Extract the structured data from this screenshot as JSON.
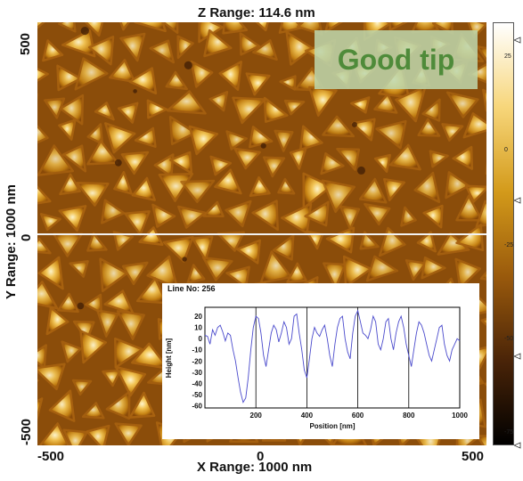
{
  "title": "Z Range:  114.6 nm",
  "x_axis": {
    "label": "X Range: 1000 nm",
    "ticks": [
      "-500",
      "0",
      "500"
    ]
  },
  "y_axis": {
    "label": "Y Range: 1000 nm",
    "ticks": [
      "500",
      "0",
      "-500"
    ]
  },
  "annotation": "Good tip",
  "profile": {
    "line_label": "Line No: 256",
    "xlabel": "Position [nm]",
    "ylabel": "Height [nm]",
    "x_ticks": [
      "200",
      "400",
      "600",
      "800",
      "1000"
    ],
    "y_ticks": [
      "20",
      "10",
      "0",
      "-10",
      "-20",
      "-30",
      "-40",
      "-50",
      "-60"
    ]
  },
  "colorbar": {
    "labels": [
      "25",
      "0",
      "-25",
      "-50",
      "-75"
    ],
    "colors": [
      "#ffffff",
      "#f7d67a",
      "#d39a1a",
      "#9a5a0c",
      "#4a2408",
      "#000000"
    ]
  },
  "chart_data": {
    "type": "line",
    "title": "Line No: 256",
    "xlabel": "Position [nm]",
    "ylabel": "Height [nm]",
    "xlim": [
      0,
      1000
    ],
    "ylim": [
      -62,
      28
    ],
    "x": [
      0,
      10,
      20,
      30,
      40,
      50,
      60,
      70,
      80,
      90,
      100,
      110,
      120,
      130,
      140,
      150,
      160,
      170,
      180,
      190,
      200,
      210,
      220,
      230,
      240,
      250,
      260,
      270,
      280,
      290,
      300,
      310,
      320,
      330,
      340,
      350,
      360,
      370,
      380,
      390,
      400,
      410,
      420,
      430,
      440,
      450,
      460,
      470,
      480,
      490,
      500,
      510,
      520,
      530,
      540,
      550,
      560,
      570,
      580,
      590,
      600,
      610,
      620,
      630,
      640,
      650,
      660,
      670,
      680,
      690,
      700,
      710,
      720,
      730,
      740,
      750,
      760,
      770,
      780,
      790,
      800,
      810,
      820,
      830,
      840,
      850,
      860,
      870,
      880,
      890,
      900,
      910,
      920,
      930,
      940,
      950,
      960,
      970,
      980,
      990,
      1000
    ],
    "y": [
      3,
      2,
      -5,
      8,
      3,
      10,
      12,
      6,
      -2,
      5,
      3,
      -10,
      -20,
      -35,
      -48,
      -57,
      -53,
      -35,
      -10,
      10,
      20,
      18,
      5,
      -15,
      -25,
      -10,
      5,
      12,
      8,
      -3,
      5,
      15,
      10,
      -5,
      0,
      20,
      22,
      5,
      -10,
      -28,
      -35,
      -18,
      0,
      10,
      5,
      2,
      8,
      12,
      0,
      -15,
      -25,
      -5,
      10,
      18,
      20,
      0,
      -12,
      -18,
      5,
      20,
      25,
      15,
      5,
      3,
      0,
      8,
      20,
      15,
      -5,
      -10,
      0,
      15,
      18,
      0,
      -10,
      5,
      15,
      20,
      10,
      -5,
      -15,
      -25,
      -10,
      5,
      15,
      12,
      5,
      -5,
      -15,
      -20,
      -10,
      0,
      10,
      12,
      -5,
      -15,
      -20,
      -10,
      -5,
      0,
      -2
    ]
  }
}
